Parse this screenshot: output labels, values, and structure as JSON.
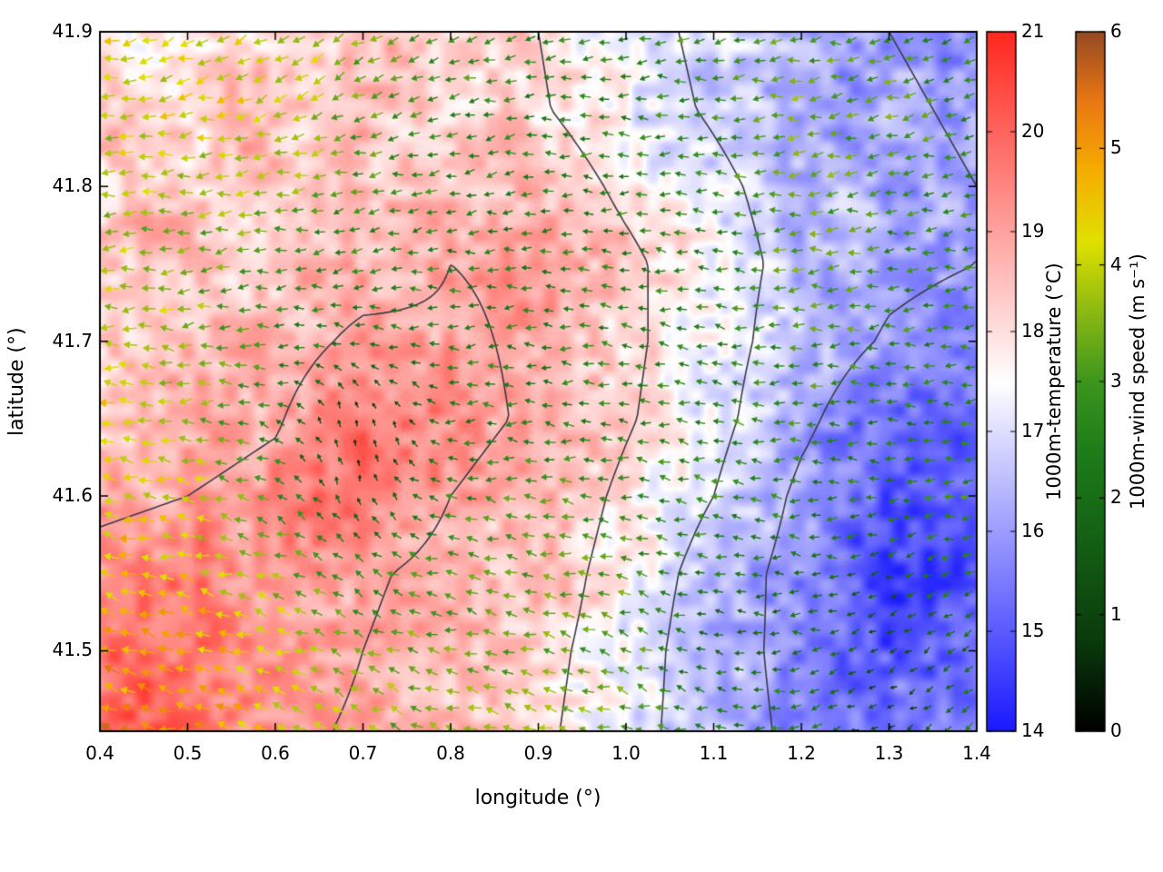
{
  "figure": {
    "background": "#ffffff",
    "axis_color": "#000000"
  },
  "chart_data": {
    "type": "heatmap",
    "overlay": "vector-field",
    "title": "",
    "xlabel": "longitude (°)",
    "ylabel": "latitude (°)",
    "xlim": [
      0.4,
      1.4
    ],
    "ylim": [
      41.448,
      41.9
    ],
    "x_ticks": [
      "0.4",
      "0.5",
      "0.6",
      "0.7",
      "0.8",
      "0.9",
      "1.0",
      "1.1",
      "1.2",
      "1.3",
      "1.4"
    ],
    "y_ticks": [
      "41.5",
      "41.6",
      "41.7",
      "41.8",
      "41.9"
    ],
    "grid": false,
    "contour_levels": [
      16,
      17,
      18,
      19
    ],
    "contour_color": "#3a3a46",
    "lon": [
      0.4,
      0.5,
      0.6,
      0.7,
      0.8,
      0.9,
      1.0,
      1.1,
      1.2,
      1.3,
      1.4
    ],
    "lat": [
      41.9,
      41.85,
      41.8,
      41.75,
      41.7,
      41.65,
      41.6,
      41.55,
      41.5,
      41.45
    ],
    "temperature_c": [
      [
        18.0,
        18.2,
        18.3,
        18.4,
        18.3,
        18.0,
        17.3,
        16.8,
        16.3,
        16.0,
        15.8
      ],
      [
        18.2,
        18.3,
        18.4,
        18.5,
        18.4,
        18.1,
        17.4,
        16.9,
        16.4,
        16.1,
        15.9
      ],
      [
        18.4,
        18.5,
        18.5,
        18.6,
        18.8,
        18.6,
        17.8,
        17.2,
        16.6,
        16.2,
        16.0
      ],
      [
        18.3,
        18.4,
        18.4,
        18.6,
        19.0,
        18.9,
        18.2,
        17.4,
        16.7,
        16.2,
        16.0
      ],
      [
        18.2,
        18.4,
        18.6,
        19.2,
        19.1,
        18.9,
        18.2,
        17.4,
        16.5,
        15.9,
        15.6
      ],
      [
        18.4,
        18.6,
        18.9,
        19.9,
        19.2,
        18.9,
        18.1,
        17.3,
        16.2,
        15.3,
        15.2
      ],
      [
        18.8,
        19.0,
        19.3,
        19.6,
        19.0,
        18.7,
        17.8,
        17.0,
        15.8,
        15.0,
        15.1
      ],
      [
        19.3,
        19.5,
        19.2,
        19.1,
        18.8,
        18.5,
        17.6,
        16.6,
        15.6,
        14.7,
        15.0
      ],
      [
        19.9,
        19.8,
        19.4,
        19.0,
        18.7,
        18.3,
        17.5,
        16.4,
        15.7,
        14.9,
        15.2
      ],
      [
        20.4,
        19.9,
        19.2,
        18.9,
        18.6,
        18.2,
        17.4,
        16.4,
        15.8,
        15.3,
        15.5
      ]
    ],
    "wind_speed_ms": [
      [
        4.2,
        4.3,
        4.0,
        3.4,
        2.8,
        2.6,
        2.6,
        2.8,
        3.2,
        3.0,
        2.4
      ],
      [
        4.0,
        4.2,
        4.1,
        3.2,
        2.7,
        2.5,
        2.6,
        2.8,
        3.4,
        3.2,
        2.5
      ],
      [
        3.6,
        3.8,
        3.6,
        2.9,
        2.5,
        2.4,
        2.5,
        2.7,
        3.5,
        3.0,
        2.5
      ],
      [
        3.8,
        3.4,
        2.8,
        2.6,
        2.4,
        2.3,
        2.4,
        2.6,
        3.3,
        2.8,
        2.6
      ],
      [
        4.2,
        3.6,
        2.6,
        2.2,
        2.3,
        2.4,
        2.5,
        2.6,
        3.0,
        2.6,
        2.7
      ],
      [
        4.4,
        3.8,
        2.4,
        0.4,
        2.2,
        2.5,
        2.6,
        2.7,
        2.8,
        2.4,
        2.6
      ],
      [
        4.3,
        4.0,
        2.8,
        1.2,
        2.6,
        3.0,
        2.8,
        2.6,
        2.5,
        2.3,
        2.6
      ],
      [
        4.6,
        4.4,
        3.6,
        2.6,
        3.0,
        3.2,
        3.0,
        2.2,
        2.0,
        1.8,
        2.4
      ],
      [
        5.0,
        4.8,
        4.2,
        3.4,
        3.2,
        3.4,
        3.2,
        1.6,
        2.2,
        1.2,
        2.2
      ],
      [
        5.4,
        5.0,
        4.4,
        3.6,
        3.5,
        3.6,
        3.4,
        2.4,
        2.6,
        1.0,
        2.4
      ]
    ],
    "wind_dir_deg": [
      [
        195,
        200,
        205,
        210,
        200,
        190,
        185,
        185,
        190,
        195,
        200
      ],
      [
        190,
        195,
        200,
        205,
        195,
        185,
        180,
        182,
        188,
        192,
        198
      ],
      [
        185,
        190,
        195,
        195,
        190,
        182,
        178,
        180,
        185,
        190,
        195
      ],
      [
        180,
        185,
        190,
        188,
        185,
        180,
        175,
        178,
        182,
        186,
        190
      ],
      [
        175,
        180,
        185,
        170,
        180,
        178,
        172,
        175,
        180,
        182,
        185
      ],
      [
        172,
        176,
        160,
        90,
        175,
        175,
        170,
        172,
        178,
        180,
        182
      ],
      [
        170,
        172,
        150,
        110,
        170,
        172,
        168,
        170,
        175,
        185,
        190
      ],
      [
        168,
        170,
        160,
        150,
        168,
        170,
        165,
        168,
        180,
        200,
        205
      ],
      [
        165,
        168,
        162,
        158,
        165,
        168,
        162,
        170,
        190,
        210,
        215
      ],
      [
        162,
        165,
        160,
        156,
        162,
        165,
        160,
        172,
        195,
        215,
        220
      ]
    ],
    "colorbars": [
      {
        "id": "temperature",
        "label": "1000m-temperature (°C)",
        "min": 14,
        "max": 21,
        "ticks": [
          "14",
          "15",
          "16",
          "17",
          "18",
          "19",
          "20",
          "21"
        ],
        "colors_hint": [
          "#1919ff",
          "#ffffff",
          "#ff281e"
        ]
      },
      {
        "id": "wind",
        "label": "1000m-wind speed (m s⁻¹)",
        "min": 0,
        "max": 6,
        "ticks": [
          "0",
          "1",
          "2",
          "3",
          "4",
          "5",
          "6"
        ],
        "colors_hint": [
          "#000000",
          "#146414",
          "#e1e100",
          "#f5af00",
          "#964b23"
        ]
      }
    ]
  }
}
